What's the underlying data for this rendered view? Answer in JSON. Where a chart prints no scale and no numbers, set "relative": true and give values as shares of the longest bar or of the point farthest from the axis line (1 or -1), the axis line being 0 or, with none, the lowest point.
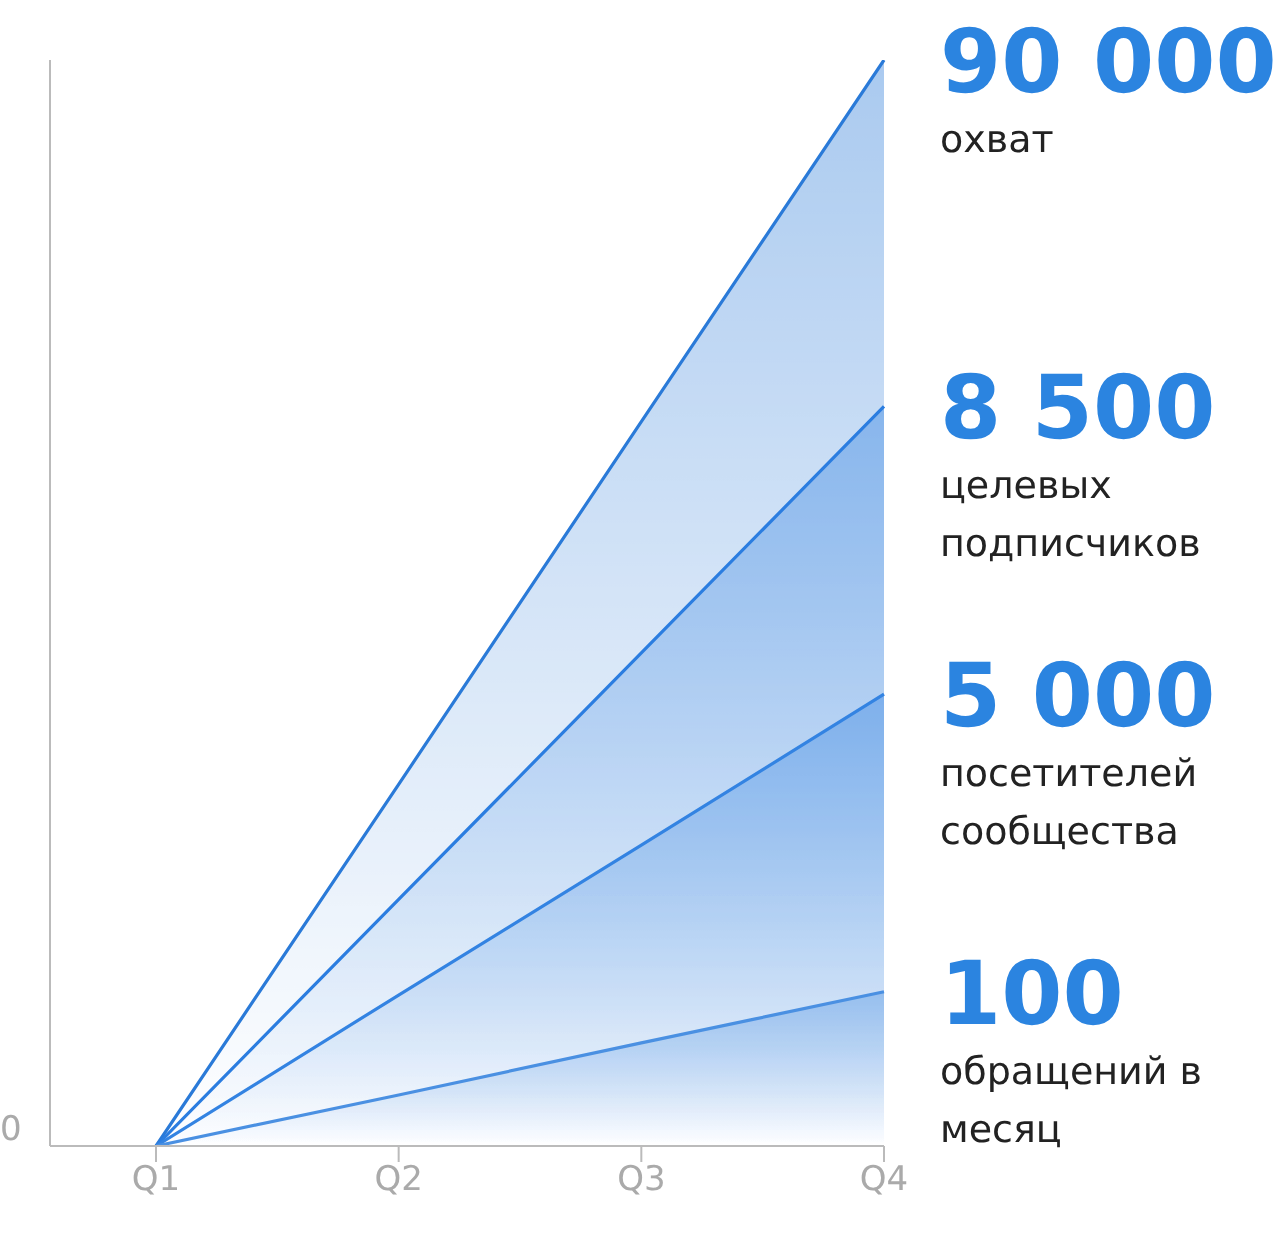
{
  "chart_data": {
    "type": "area",
    "relative": true,
    "categories": [
      "Q1",
      "Q2",
      "Q3",
      "Q4"
    ],
    "series": [
      {
        "name": "охват",
        "color": "#2a7ad8",
        "values": [
          0,
          0.333,
          0.667,
          1
        ]
      },
      {
        "name": "целевых подписчиков",
        "color": "#2b7de0",
        "values": [
          0,
          0.227,
          0.454,
          0.681
        ]
      },
      {
        "name": "посетителей сообщества",
        "color": "#3383e2",
        "values": [
          0,
          0.139,
          0.277,
          0.416
        ]
      },
      {
        "name": "обращений в месяц",
        "color": "#4a90e2",
        "values": [
          0,
          0.047,
          0.095,
          0.142
        ]
      }
    ],
    "annotations": [
      "0",
      {
        "text": "90 000",
        "x": "Q4",
        "y": 1
      },
      {
        "text": "8 500",
        "x": "Q4",
        "y": 0.681
      },
      {
        "text": "5 000",
        "x": "Q4",
        "y": 0.416
      },
      {
        "text": "100",
        "x": "Q4",
        "y": 0.142
      }
    ]
  }
}
